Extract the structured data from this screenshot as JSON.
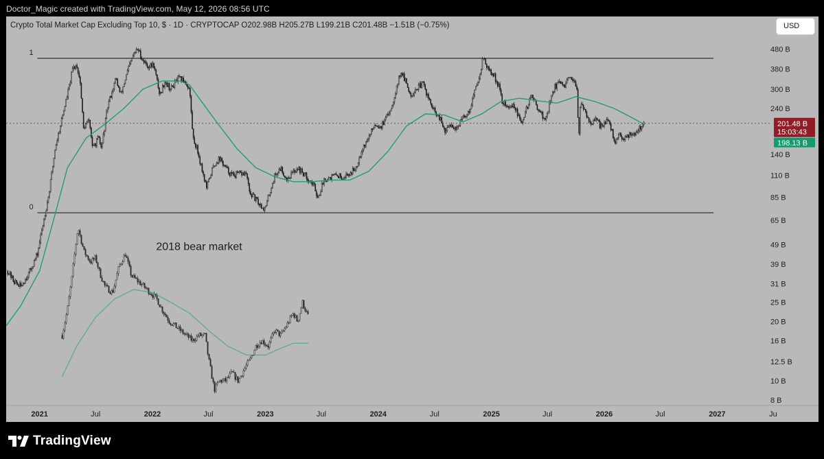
{
  "attribution": "Doctor_Magic created with TradingView.com, May 12, 2026 08:56 UTC",
  "header": "Crypto Total Market Cap Excluding Top 10, $ · 1D · CRYPTOCAP  O202.98B  H205.27B  L199.21B  C201.48B  −1.51B (−0.75%)",
  "currency_button": "USD",
  "brand": "TradingView",
  "colors": {
    "background": "#b9b9b9",
    "candles": "#1b1b1b",
    "ma_line": "#1f9e72",
    "fib_line": "#333333",
    "last_price_badge": "#8f1d26",
    "ma_badge": "#159a6d"
  },
  "chart_data": {
    "type": "line",
    "title": "Crypto Total Market Cap Excluding Top 10, $ · 1D · CRYPTOCAP",
    "y_scale": "log",
    "ylim_billions": [
      7.5,
      560
    ],
    "xlim": [
      "2020-09-15",
      "2027-06-20"
    ],
    "ohlc_last": {
      "open": "202.98B",
      "high": "205.27B",
      "low": "199.21B",
      "close": "201.48B",
      "change": "−1.51B (−0.75%)"
    },
    "y_ticks": [
      {
        "label": "480 B",
        "value": 480
      },
      {
        "label": "380 B",
        "value": 380
      },
      {
        "label": "300 B",
        "value": 300
      },
      {
        "label": "240 B",
        "value": 240
      },
      {
        "label": "140 B",
        "value": 140
      },
      {
        "label": "110 B",
        "value": 110
      },
      {
        "label": "85 B",
        "value": 85
      },
      {
        "label": "65 B",
        "value": 65
      },
      {
        "label": "49 B",
        "value": 49
      },
      {
        "label": "39 B",
        "value": 39
      },
      {
        "label": "31 B",
        "value": 31
      },
      {
        "label": "25 B",
        "value": 25
      },
      {
        "label": "20 B",
        "value": 20
      },
      {
        "label": "16 B",
        "value": 16
      },
      {
        "label": "12.5 B",
        "value": 12.5
      },
      {
        "label": "10 B",
        "value": 10
      },
      {
        "label": "8 B",
        "value": 8
      }
    ],
    "x_ticks": [
      {
        "label": "2021",
        "date": "2021-01-01",
        "bold": true
      },
      {
        "label": "Jul",
        "date": "2021-07-01"
      },
      {
        "label": "2022",
        "date": "2022-01-01",
        "bold": true
      },
      {
        "label": "Jul",
        "date": "2022-07-01"
      },
      {
        "label": "2023",
        "date": "2023-01-01",
        "bold": true
      },
      {
        "label": "Jul",
        "date": "2023-07-01"
      },
      {
        "label": "2024",
        "date": "2024-01-01",
        "bold": true
      },
      {
        "label": "Jul",
        "date": "2024-07-01"
      },
      {
        "label": "2025",
        "date": "2025-01-01",
        "bold": true
      },
      {
        "label": "Jul",
        "date": "2025-07-01"
      },
      {
        "label": "2026",
        "date": "2026-01-01",
        "bold": true
      },
      {
        "label": "Jul",
        "date": "2026-07-01"
      },
      {
        "label": "2027",
        "date": "2027-01-01",
        "bold": true
      },
      {
        "label": "Ju",
        "date": "2027-07-01"
      }
    ],
    "price_labels": [
      {
        "text": "201.48 B",
        "value": 201.48,
        "kind": "last"
      },
      {
        "text": "15:03:43",
        "kind": "countdown"
      },
      {
        "text": "198.13 B",
        "value": 198.13,
        "kind": "ma"
      }
    ],
    "fib_levels": [
      {
        "label": "1",
        "value": 430,
        "from": "2020-12-25",
        "to": "2026-12-20"
      },
      {
        "label": "0",
        "value": 71,
        "from": "2020-12-25",
        "to": "2026-12-20"
      }
    ],
    "annotation": "2018 bear market",
    "main_series": {
      "name": "",
      "points": [
        [
          "2020-09-20",
          36
        ],
        [
          "2020-10-10",
          32
        ],
        [
          "2020-11-01",
          30
        ],
        [
          "2020-12-01",
          36
        ],
        [
          "2020-12-25",
          44
        ],
        [
          "2021-01-10",
          60
        ],
        [
          "2021-02-01",
          90
        ],
        [
          "2021-02-20",
          150
        ],
        [
          "2021-03-10",
          200
        ],
        [
          "2021-04-05",
          300
        ],
        [
          "2021-04-18",
          380
        ],
        [
          "2021-05-01",
          400
        ],
        [
          "2021-05-12",
          330
        ],
        [
          "2021-05-23",
          190
        ],
        [
          "2021-06-10",
          210
        ],
        [
          "2021-06-22",
          150
        ],
        [
          "2021-07-10",
          170
        ],
        [
          "2021-07-20",
          150
        ],
        [
          "2021-08-10",
          250
        ],
        [
          "2021-09-05",
          340
        ],
        [
          "2021-09-20",
          280
        ],
        [
          "2021-10-15",
          380
        ],
        [
          "2021-11-01",
          450
        ],
        [
          "2021-11-15",
          480
        ],
        [
          "2021-12-01",
          420
        ],
        [
          "2021-12-20",
          390
        ],
        [
          "2022-01-05",
          400
        ],
        [
          "2022-01-25",
          280
        ],
        [
          "2022-02-10",
          330
        ],
        [
          "2022-03-01",
          300
        ],
        [
          "2022-03-25",
          340
        ],
        [
          "2022-04-15",
          330
        ],
        [
          "2022-05-01",
          300
        ],
        [
          "2022-05-12",
          170
        ],
        [
          "2022-05-25",
          150
        ],
        [
          "2022-06-15",
          110
        ],
        [
          "2022-06-25",
          95
        ],
        [
          "2022-07-15",
          120
        ],
        [
          "2022-08-05",
          135
        ],
        [
          "2022-08-25",
          120
        ],
        [
          "2022-09-15",
          110
        ],
        [
          "2022-10-15",
          112
        ],
        [
          "2022-11-01",
          112
        ],
        [
          "2022-11-10",
          90
        ],
        [
          "2022-11-25",
          85
        ],
        [
          "2022-12-15",
          78
        ],
        [
          "2022-12-31",
          74
        ],
        [
          "2023-01-15",
          90
        ],
        [
          "2023-02-01",
          110
        ],
        [
          "2023-02-20",
          120
        ],
        [
          "2023-03-10",
          105
        ],
        [
          "2023-04-15",
          120
        ],
        [
          "2023-05-10",
          110
        ],
        [
          "2023-06-10",
          96
        ],
        [
          "2023-06-20",
          84
        ],
        [
          "2023-07-10",
          105
        ],
        [
          "2023-08-01",
          108
        ],
        [
          "2023-08-20",
          110
        ],
        [
          "2023-09-10",
          108
        ],
        [
          "2023-10-01",
          112
        ],
        [
          "2023-10-20",
          120
        ],
        [
          "2023-11-10",
          150
        ],
        [
          "2023-12-01",
          170
        ],
        [
          "2023-12-20",
          200
        ],
        [
          "2024-01-10",
          195
        ],
        [
          "2024-01-25",
          210
        ],
        [
          "2024-02-15",
          250
        ],
        [
          "2024-03-05",
          330
        ],
        [
          "2024-03-15",
          370
        ],
        [
          "2024-04-01",
          320
        ],
        [
          "2024-04-15",
          280
        ],
        [
          "2024-05-01",
          300
        ],
        [
          "2024-05-25",
          320
        ],
        [
          "2024-06-15",
          260
        ],
        [
          "2024-07-01",
          230
        ],
        [
          "2024-07-20",
          210
        ],
        [
          "2024-08-05",
          180
        ],
        [
          "2024-08-20",
          200
        ],
        [
          "2024-09-10",
          190
        ],
        [
          "2024-10-01",
          215
        ],
        [
          "2024-10-20",
          230
        ],
        [
          "2024-11-10",
          300
        ],
        [
          "2024-11-25",
          360
        ],
        [
          "2024-12-05",
          440
        ],
        [
          "2024-12-20",
          380
        ],
        [
          "2025-01-10",
          350
        ],
        [
          "2025-01-25",
          310
        ],
        [
          "2025-02-05",
          260
        ],
        [
          "2025-02-25",
          240
        ],
        [
          "2025-03-15",
          250
        ],
        [
          "2025-04-07",
          200
        ],
        [
          "2025-04-25",
          240
        ],
        [
          "2025-05-10",
          280
        ],
        [
          "2025-05-25",
          250
        ],
        [
          "2025-06-10",
          230
        ],
        [
          "2025-06-22",
          205
        ],
        [
          "2025-07-10",
          260
        ],
        [
          "2025-07-25",
          310
        ],
        [
          "2025-08-10",
          320
        ],
        [
          "2025-08-25",
          310
        ],
        [
          "2025-09-10",
          340
        ],
        [
          "2025-09-25",
          320
        ],
        [
          "2025-10-05",
          310
        ],
        [
          "2025-10-10",
          165
        ],
        [
          "2025-10-15",
          250
        ],
        [
          "2025-11-01",
          230
        ],
        [
          "2025-11-20",
          200
        ],
        [
          "2025-12-05",
          210
        ],
        [
          "2025-12-20",
          195
        ],
        [
          "2026-01-10",
          210
        ],
        [
          "2026-01-25",
          185
        ],
        [
          "2026-02-06",
          160
        ],
        [
          "2026-02-20",
          175
        ],
        [
          "2026-03-10",
          170
        ],
        [
          "2026-03-25",
          180
        ],
        [
          "2026-04-10",
          180
        ],
        [
          "2026-04-25",
          190
        ],
        [
          "2026-05-12",
          201.48
        ]
      ]
    },
    "main_ma": {
      "name": "",
      "points": [
        [
          "2020-09-15",
          19
        ],
        [
          "2020-11-01",
          24
        ],
        [
          "2021-01-01",
          36
        ],
        [
          "2021-02-15",
          65
        ],
        [
          "2021-04-01",
          120
        ],
        [
          "2021-06-01",
          170
        ],
        [
          "2021-08-01",
          200
        ],
        [
          "2021-10-01",
          240
        ],
        [
          "2021-12-01",
          300
        ],
        [
          "2022-02-01",
          330
        ],
        [
          "2022-04-01",
          330
        ],
        [
          "2022-05-01",
          315
        ],
        [
          "2022-06-01",
          270
        ],
        [
          "2022-08-01",
          200
        ],
        [
          "2022-10-01",
          150
        ],
        [
          "2022-12-01",
          120
        ],
        [
          "2023-02-01",
          108
        ],
        [
          "2023-04-01",
          102
        ],
        [
          "2023-06-01",
          102
        ],
        [
          "2023-08-01",
          104
        ],
        [
          "2023-10-01",
          104
        ],
        [
          "2023-12-01",
          115
        ],
        [
          "2024-02-01",
          145
        ],
        [
          "2024-04-01",
          195
        ],
        [
          "2024-06-01",
          225
        ],
        [
          "2024-08-01",
          222
        ],
        [
          "2024-10-01",
          205
        ],
        [
          "2024-12-01",
          225
        ],
        [
          "2025-02-01",
          260
        ],
        [
          "2025-04-01",
          270
        ],
        [
          "2025-06-01",
          262
        ],
        [
          "2025-08-01",
          255
        ],
        [
          "2025-10-01",
          275
        ],
        [
          "2025-12-01",
          260
        ],
        [
          "2026-02-01",
          240
        ],
        [
          "2026-04-01",
          215
        ],
        [
          "2026-05-12",
          198.13
        ]
      ]
    },
    "overlay_series": {
      "name": "",
      "points": [
        [
          "2021-03-15",
          17
        ],
        [
          "2021-04-01",
          23
        ],
        [
          "2021-04-15",
          33
        ],
        [
          "2021-04-25",
          45
        ],
        [
          "2021-05-05",
          60
        ],
        [
          "2021-05-25",
          45
        ],
        [
          "2021-06-15",
          40
        ],
        [
          "2021-07-01",
          42
        ],
        [
          "2021-07-15",
          35
        ],
        [
          "2021-08-01",
          30
        ],
        [
          "2021-08-25",
          28
        ],
        [
          "2021-09-15",
          38
        ],
        [
          "2021-10-05",
          44
        ],
        [
          "2021-10-25",
          34
        ],
        [
          "2021-11-15",
          32
        ],
        [
          "2021-12-05",
          30
        ],
        [
          "2021-12-25",
          28
        ],
        [
          "2022-01-15",
          26
        ],
        [
          "2022-02-01",
          23
        ],
        [
          "2022-02-25",
          20
        ],
        [
          "2022-03-15",
          19
        ],
        [
          "2022-04-01",
          18
        ],
        [
          "2022-04-20",
          17
        ],
        [
          "2022-05-10",
          16
        ],
        [
          "2022-05-30",
          17
        ],
        [
          "2022-06-20",
          17
        ],
        [
          "2022-07-01",
          13
        ],
        [
          "2022-07-10",
          11
        ],
        [
          "2022-07-20",
          9
        ],
        [
          "2022-08-05",
          10
        ],
        [
          "2022-08-25",
          10
        ],
        [
          "2022-09-15",
          11
        ],
        [
          "2022-10-05",
          10
        ],
        [
          "2022-10-25",
          11.5
        ],
        [
          "2022-11-15",
          13
        ],
        [
          "2022-12-01",
          15
        ],
        [
          "2022-12-20",
          16
        ],
        [
          "2023-01-10",
          15
        ],
        [
          "2023-02-01",
          18
        ],
        [
          "2023-02-20",
          17
        ],
        [
          "2023-03-10",
          19
        ],
        [
          "2023-04-01",
          22
        ],
        [
          "2023-04-15",
          20
        ],
        [
          "2023-05-01",
          25
        ],
        [
          "2023-05-20",
          21
        ]
      ]
    },
    "overlay_ma": {
      "name": "",
      "points": [
        [
          "2021-03-15",
          10.5
        ],
        [
          "2021-05-01",
          15
        ],
        [
          "2021-07-01",
          21
        ],
        [
          "2021-09-01",
          26
        ],
        [
          "2021-11-01",
          29
        ],
        [
          "2022-01-01",
          28
        ],
        [
          "2022-03-01",
          25
        ],
        [
          "2022-05-01",
          22
        ],
        [
          "2022-07-01",
          18
        ],
        [
          "2022-09-01",
          15
        ],
        [
          "2022-11-01",
          13.5
        ],
        [
          "2023-01-01",
          13.5
        ],
        [
          "2023-02-15",
          14.5
        ],
        [
          "2023-04-01",
          15.5
        ],
        [
          "2023-05-20",
          15.5
        ]
      ]
    }
  }
}
